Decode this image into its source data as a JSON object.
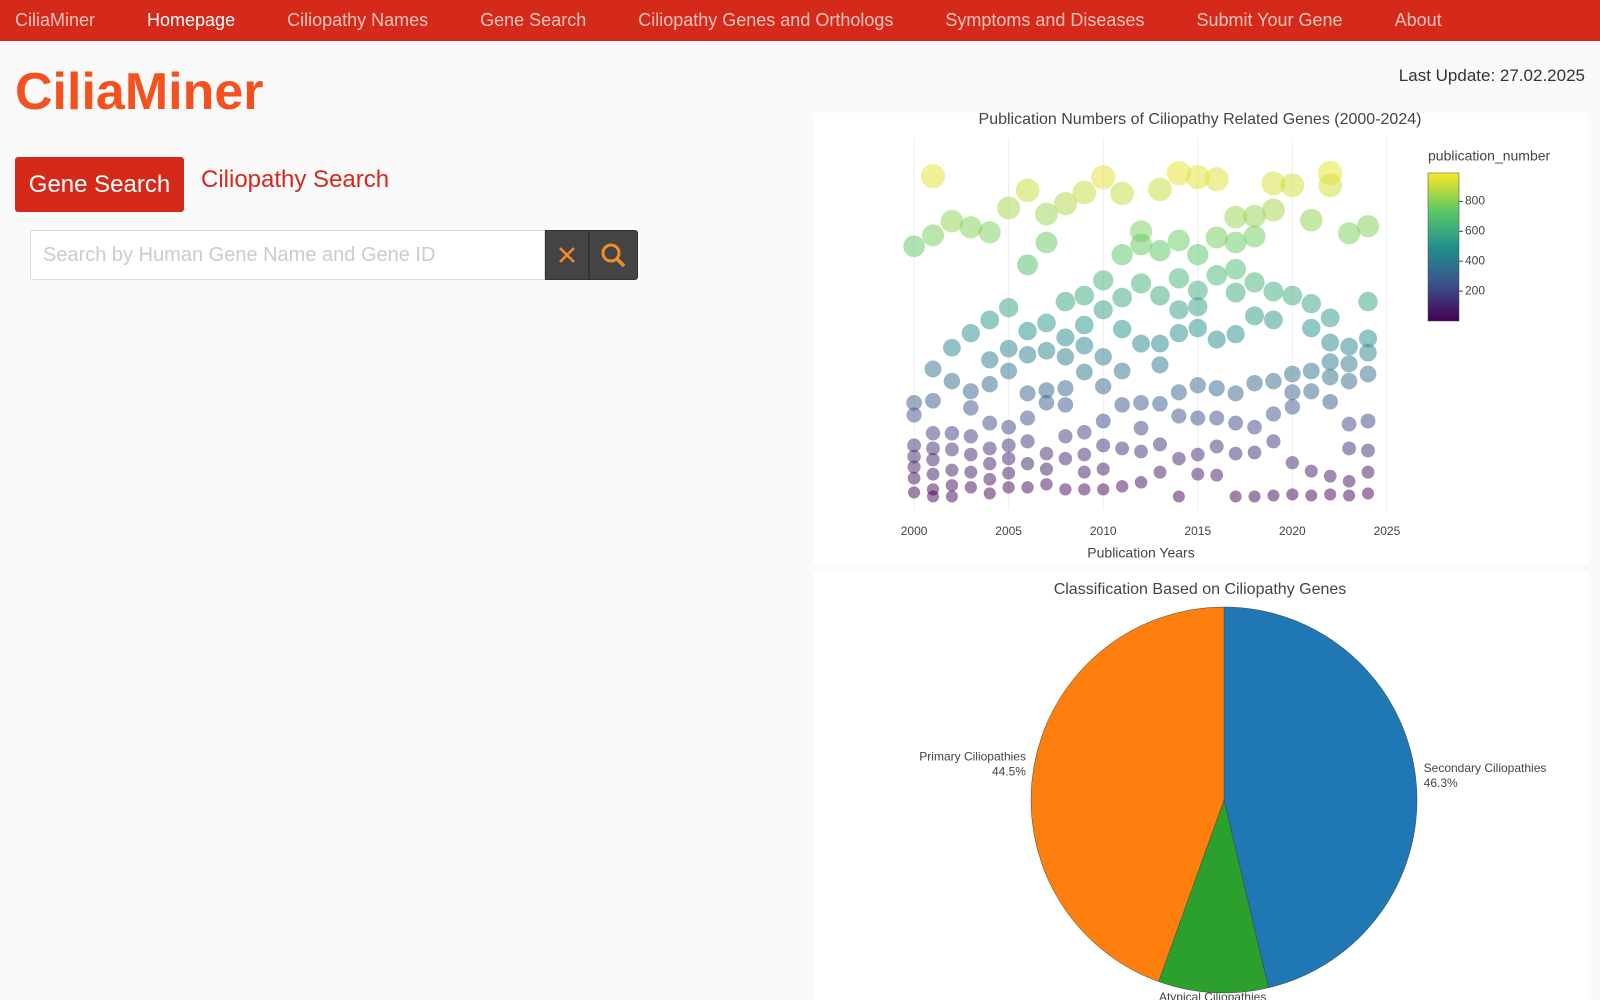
{
  "nav": {
    "brand": "CiliaMiner",
    "items": [
      "Homepage",
      "Ciliopathy Names",
      "Gene Search",
      "Ciliopathy Genes and Orthologs",
      "Symptoms and Diseases",
      "Submit Your Gene",
      "About"
    ]
  },
  "header": {
    "title": "CiliaMiner",
    "last_update": "Last Update: 27.02.2025"
  },
  "tabs": [
    "Gene Search",
    "Ciliopathy Search"
  ],
  "search": {
    "placeholder": "Search by Human Gene Name and Gene ID"
  },
  "chart_data": [
    {
      "type": "scatter",
      "title": "Publication Numbers of Ciliopathy Related Genes (2000-2024)",
      "x_label": "Publication Years",
      "color_label": "publication_number",
      "x": [
        2000,
        2000,
        2000,
        2000,
        2000,
        2000,
        2000,
        2000,
        2001,
        2001,
        2001,
        2001,
        2001,
        2001,
        2001,
        2001,
        2001,
        2001,
        2002,
        2002,
        2002,
        2002,
        2002,
        2002,
        2002,
        2002,
        2003,
        2003,
        2003,
        2003,
        2003,
        2003,
        2003,
        2003,
        2004,
        2004,
        2004,
        2004,
        2004,
        2004,
        2004,
        2004,
        2004,
        2005,
        2005,
        2005,
        2005,
        2005,
        2005,
        2005,
        2005,
        2005,
        2006,
        2006,
        2006,
        2006,
        2006,
        2006,
        2006,
        2006,
        2006,
        2007,
        2007,
        2007,
        2007,
        2007,
        2007,
        2007,
        2007,
        2007,
        2008,
        2008,
        2008,
        2008,
        2008,
        2008,
        2008,
        2008,
        2008,
        2009,
        2009,
        2009,
        2009,
        2009,
        2009,
        2009,
        2009,
        2009,
        2010,
        2010,
        2010,
        2010,
        2010,
        2010,
        2010,
        2010,
        2010,
        2011,
        2011,
        2011,
        2011,
        2011,
        2011,
        2011,
        2011,
        2012,
        2012,
        2012,
        2012,
        2012,
        2012,
        2012,
        2012,
        2013,
        2013,
        2013,
        2013,
        2013,
        2013,
        2013,
        2013,
        2014,
        2014,
        2014,
        2014,
        2014,
        2014,
        2014,
        2014,
        2014,
        2015,
        2015,
        2015,
        2015,
        2015,
        2015,
        2015,
        2015,
        2015,
        2016,
        2016,
        2016,
        2016,
        2016,
        2016,
        2016,
        2016,
        2017,
        2017,
        2017,
        2017,
        2017,
        2017,
        2017,
        2017,
        2017,
        2018,
        2018,
        2018,
        2018,
        2018,
        2018,
        2018,
        2018,
        2019,
        2019,
        2019,
        2019,
        2019,
        2019,
        2019,
        2019,
        2020,
        2020,
        2020,
        2020,
        2020,
        2020,
        2020,
        2021,
        2021,
        2021,
        2021,
        2021,
        2021,
        2021,
        2022,
        2022,
        2022,
        2022,
        2022,
        2022,
        2022,
        2022,
        2022,
        2023,
        2023,
        2023,
        2023,
        2023,
        2023,
        2023,
        2023,
        2024,
        2024,
        2024,
        2024,
        2024,
        2024,
        2024,
        2024,
        2024
      ],
      "values": [
        740,
        277,
        241,
        151,
        118,
        87,
        54,
        12,
        947,
        772,
        377,
        283,
        187,
        142,
        109,
        66,
        21,
        0,
        814,
        440,
        341,
        187,
        139,
        78,
        33,
        0,
        796,
        483,
        311,
        262,
        178,
        124,
        72,
        27,
        781,
        522,
        404,
        332,
        217,
        142,
        97,
        51,
        9,
        853,
        558,
        437,
        371,
        205,
        151,
        112,
        69,
        27,
        905,
        685,
        489,
        419,
        305,
        232,
        163,
        97,
        27,
        835,
        751,
        513,
        431,
        314,
        277,
        127,
        81,
        36,
        866,
        576,
        470,
        413,
        320,
        271,
        178,
        112,
        21,
        899,
        594,
        507,
        446,
        368,
        190,
        124,
        72,
        21,
        944,
        639,
        552,
        413,
        326,
        223,
        151,
        81,
        21,
        896,
        715,
        588,
        495,
        371,
        271,
        142,
        30,
        784,
        745,
        630,
        452,
        277,
        202,
        133,
        42,
        908,
        727,
        594,
        452,
        389,
        274,
        154,
        72,
        956,
        757,
        645,
        552,
        483,
        308,
        238,
        112,
        0,
        944,
        715,
        609,
        561,
        498,
        329,
        232,
        124,
        66,
        938,
        766,
        654,
        464,
        320,
        232,
        148,
        63,
        826,
        751,
        672,
        603,
        480,
        305,
        217,
        127,
        0,
        829,
        769,
        633,
        534,
        335,
        205,
        130,
        0,
        926,
        847,
        606,
        522,
        341,
        244,
        163,
        3,
        920,
        594,
        362,
        308,
        265,
        100,
        6,
        817,
        570,
        498,
        371,
        311,
        75,
        3,
        956,
        920,
        528,
        455,
        398,
        353,
        280,
        60,
        6,
        778,
        443,
        392,
        341,
        214,
        142,
        45,
        3,
        799,
        576,
        467,
        425,
        362,
        223,
        136,
        72,
        9
      ],
      "xlim": [
        1999.15,
        2025.85
      ],
      "xticks": [
        2000,
        2005,
        2010,
        2015,
        2020,
        2025
      ],
      "ylim": [
        -40,
        1060
      ],
      "clim": [
        0,
        990
      ],
      "cticks": [
        200,
        400,
        600,
        800
      ],
      "colorscale": [
        "#440154",
        "#3b528b",
        "#21918c",
        "#5ec962",
        "#fde725"
      ],
      "opacity": 0.5,
      "grid": true
    },
    {
      "type": "pie",
      "title": "Classification Based on Ciliopathy Genes",
      "categories": [
        "Secondary Ciliopathies",
        "Atypical Ciliopathies",
        "Primary Ciliopathies"
      ],
      "values": [
        46.3,
        9.2,
        44.5
      ],
      "value_labels": [
        "46.3%",
        "9.2%",
        "44.5%"
      ],
      "colors": [
        "#1f77b4",
        "#2ca02c",
        "#ff7f0e"
      ],
      "direction": "clockwise"
    }
  ]
}
